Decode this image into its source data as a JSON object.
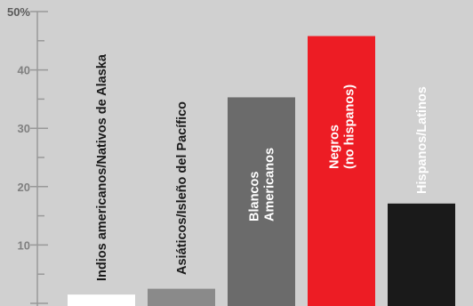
{
  "chart_data": {
    "type": "bar",
    "categories": [
      [
        "Indios americanos/Nativos de Alaska"
      ],
      [
        "Asiáticos/Isleño del Pacífico"
      ],
      [
        "Blancos",
        "Americanos"
      ],
      [
        "Negros",
        "(no hispanos)"
      ],
      [
        "Hispanos/Latinos"
      ]
    ],
    "values": [
      1.5,
      2.5,
      35.3,
      45.8,
      17.1
    ],
    "colors": [
      "#ffffff",
      "#8a8a8a",
      "#6b6b6b",
      "#ed1c24",
      "#1a1a1a"
    ],
    "label_colors": [
      "#1a1a1a",
      "#1a1a1a",
      "#ffffff",
      "#ffffff",
      "#ffffff"
    ],
    "ylim": [
      0,
      50
    ],
    "yticks": [
      {
        "value": 0,
        "label": ""
      },
      {
        "value": 10,
        "label": "10"
      },
      {
        "value": 20,
        "label": "20"
      },
      {
        "value": 30,
        "label": "30"
      },
      {
        "value": 40,
        "label": "40"
      },
      {
        "value": 50,
        "label": "50%"
      }
    ],
    "minor_ticks": true,
    "grid": false,
    "title": "",
    "xlabel": "",
    "ylabel": ""
  }
}
